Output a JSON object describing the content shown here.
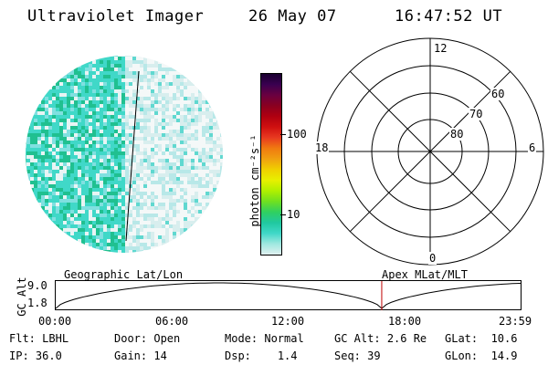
{
  "header": {
    "instrument": "Ultraviolet Imager",
    "date": "26 May 07",
    "time": "16:47:52 UT"
  },
  "colorbar": {
    "unit_label": "photon cm⁻²s⁻¹",
    "ticks": [
      "100",
      "10"
    ],
    "colors": [
      "#1a0030",
      "#3a0050",
      "#6a0040",
      "#8a0020",
      "#b00010",
      "#d01010",
      "#e83a20",
      "#f07a10",
      "#f0a010",
      "#f0d000",
      "#e8f000",
      "#b0f000",
      "#70e020",
      "#30d060",
      "#20c8a0",
      "#40d8c8",
      "#a0e8e0",
      "#e0f0f0"
    ]
  },
  "polar_plot": {
    "mlt_labels": {
      "top": "12",
      "right": "6",
      "bottom": "0",
      "left": "18"
    },
    "lat_labels": [
      "60",
      "70",
      "80"
    ]
  },
  "timeline": {
    "left_title": "Geographic Lat/Lon",
    "right_title": "Apex MLat/MLT",
    "ylabel": "GC Alt",
    "y_ticks": [
      "9.0",
      "1.8"
    ],
    "x_ticks": [
      "00:00",
      "06:00",
      "12:00",
      "18:00",
      "23:59"
    ],
    "marker_time": "16:47:52",
    "marker_color": "#c00000"
  },
  "status": {
    "row1": [
      {
        "label": "Flt:",
        "value": "LBHL"
      },
      {
        "label": "Door:",
        "value": "Open"
      },
      {
        "label": "Mode:",
        "value": "Normal"
      },
      {
        "label": "GC Alt:",
        "value": "2.6 Re"
      },
      {
        "label": "GLat:",
        "value": "10.6"
      }
    ],
    "row2": [
      {
        "label": "IP:",
        "value": "36.0"
      },
      {
        "label": "Gain:",
        "value": "14"
      },
      {
        "label": "Dsp:",
        "value": "1.4"
      },
      {
        "label": "Seq:",
        "value": "39"
      },
      {
        "label": "GLon:",
        "value": "14.9"
      }
    ]
  }
}
